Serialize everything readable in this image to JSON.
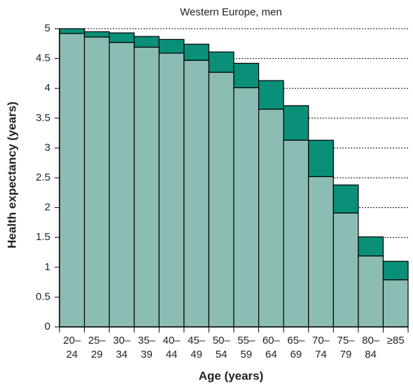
{
  "chart_data": {
    "type": "stacked_bar",
    "title": "Western Europe, men",
    "x_label": "Age (years)",
    "y_label": "Health expectancy (years)",
    "categories": [
      "20–\n24",
      "25–\n29",
      "30–\n34",
      "35–\n39",
      "40–\n44",
      "45–\n49",
      "50–\n54",
      "55–\n59",
      "60–\n64",
      "65–\n69",
      "70–\n74",
      "75–\n79",
      "80–\n84",
      "≥85"
    ],
    "series": [
      {
        "color": "#8bbdb4",
        "values": [
          4.92,
          4.86,
          4.77,
          4.69,
          4.59,
          4.47,
          4.27,
          4.01,
          3.65,
          3.13,
          2.52,
          1.91,
          1.19,
          0.79
        ]
      },
      {
        "color": "#0a8f78",
        "values": [
          0.08,
          0.09,
          0.16,
          0.18,
          0.23,
          0.27,
          0.34,
          0.41,
          0.48,
          0.58,
          0.61,
          0.47,
          0.32,
          0.31
        ]
      }
    ],
    "ylim": [
      0,
      5
    ],
    "yticks": [
      0,
      0.5,
      1,
      1.5,
      2,
      2.5,
      3,
      3.5,
      4,
      4.5,
      5
    ],
    "grid": true
  }
}
